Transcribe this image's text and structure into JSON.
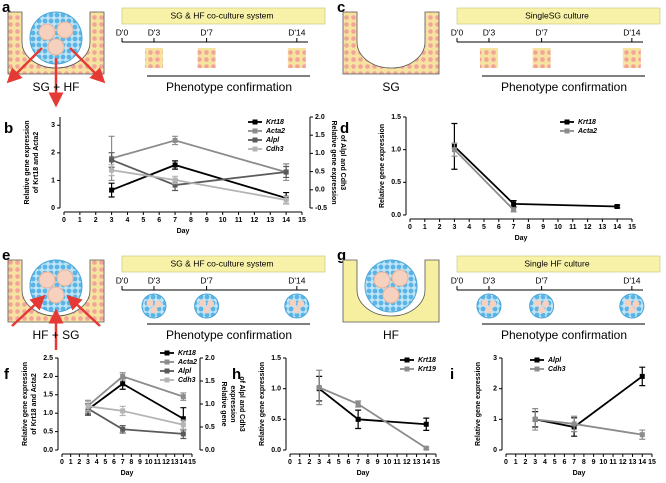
{
  "chart_data": [
    {
      "type": "line",
      "panel": "b",
      "xlabel": "Day",
      "ylabel": [
        "Relative gene expression",
        "of Krt18 and Acta2"
      ],
      "y2label": [
        "Relative gene expression",
        "of Alpl and Cdh3"
      ],
      "xlim": [
        0,
        15
      ],
      "xticks": [
        0,
        1,
        2,
        3,
        4,
        5,
        6,
        7,
        8,
        9,
        10,
        11,
        12,
        13,
        14,
        15
      ],
      "ylim": [
        0,
        3.3
      ],
      "yticks": [
        0,
        1,
        2,
        3
      ],
      "y2lim": [
        -0.5,
        2.0
      ],
      "y2ticks": [
        {
          "value": -0.5,
          "label": "-0.5"
        },
        {
          "value": 0,
          "label": "0.0"
        },
        {
          "value": 0.5,
          "label": "0.5"
        },
        {
          "value": 1,
          "label": "1.0"
        },
        {
          "value": 1.5,
          "label": "1.5"
        },
        {
          "value": 2,
          "label": "2.0"
        }
      ],
      "x": [
        3,
        7,
        14
      ],
      "series": [
        {
          "name": "Krt18",
          "color": "#000000",
          "values": [
            0.65,
            1.56,
            0.36
          ],
          "errors": [
            0.25,
            0.15,
            0.2
          ]
        },
        {
          "name": "Acta2",
          "color": "#8c8c8c",
          "values": [
            1.8,
            2.45,
            1.3
          ],
          "errors": [
            0.8,
            0.15,
            0.3
          ]
        },
        {
          "name": "Alpl",
          "color": "#5a5a5a",
          "axis": "y2",
          "values": [
            0.82,
            0.13,
            0.49
          ],
          "errors": [
            0.2,
            0.15,
            0.15
          ]
        },
        {
          "name": "Cdh3",
          "color": "#b4b4b4",
          "axis": "y2",
          "values": [
            0.54,
            0.27,
            -0.28
          ],
          "errors": [
            0.15,
            0.1,
            0.1
          ]
        }
      ]
    },
    {
      "type": "line",
      "panel": "d",
      "xlabel": "Day",
      "ylabel": [
        "Relative gene expression"
      ],
      "xlim": [
        0,
        15
      ],
      "xticks": [
        0,
        1,
        2,
        3,
        4,
        5,
        6,
        7,
        8,
        9,
        10,
        11,
        12,
        13,
        14,
        15
      ],
      "ylim": [
        0,
        1.5
      ],
      "yticks": [
        {
          "value": 0,
          "label": "0.0"
        },
        {
          "value": 0.5,
          "label": "0.5"
        },
        {
          "value": 1,
          "label": "1.0"
        },
        {
          "value": 1.5,
          "label": "1.5"
        }
      ],
      "x": [
        3,
        7,
        14
      ],
      "series": [
        {
          "name": "Krt18",
          "color": "#000000",
          "values": [
            1.05,
            0.17,
            0.13
          ],
          "errors": [
            0.35,
            0.05,
            0.02
          ]
        },
        {
          "name": "Acta2",
          "color": "#8c8c8c",
          "values": [
            1.0,
            0.08,
            null
          ],
          "errors": [
            0.1,
            0.03,
            null
          ]
        }
      ]
    },
    {
      "type": "line",
      "panel": "f",
      "xlabel": "Day",
      "ylabel": [
        "Relative gene expression",
        "of Krt18 and Acta2"
      ],
      "y2label": [
        "Relative gene",
        "expression",
        "of Alpl and Cdh3"
      ],
      "xlim": [
        0,
        15
      ],
      "xticks": [
        0,
        1,
        2,
        3,
        4,
        5,
        6,
        7,
        8,
        9,
        10,
        11,
        12,
        13,
        14,
        15
      ],
      "ylim": [
        0,
        2.5
      ],
      "yticks": [
        {
          "value": 0,
          "label": "0.0"
        },
        {
          "value": 0.5,
          "label": "0.5"
        },
        {
          "value": 1,
          "label": "1.0"
        },
        {
          "value": 1.5,
          "label": "1.5"
        },
        {
          "value": 2,
          "label": "2.0"
        },
        {
          "value": 2.5,
          "label": "2.5"
        }
      ],
      "y2lim": [
        0,
        2.0
      ],
      "y2ticks": [
        {
          "value": 0,
          "label": "0.0"
        },
        {
          "value": 0.5,
          "label": "0.5"
        },
        {
          "value": 1,
          "label": "1.0"
        },
        {
          "value": 1.5,
          "label": "1.5"
        },
        {
          "value": 2,
          "label": "2.0"
        }
      ],
      "x": [
        3,
        7,
        14
      ],
      "series": [
        {
          "name": "Krt18",
          "color": "#000000",
          "values": [
            1.1,
            1.8,
            0.85
          ],
          "errors": [
            0.15,
            0.15,
            0.3
          ]
        },
        {
          "name": "Acta2",
          "color": "#8c8c8c",
          "values": [
            1.2,
            2.0,
            1.45
          ],
          "errors": [
            0.15,
            0.1,
            0.1
          ]
        },
        {
          "name": "Alpl",
          "color": "#5a5a5a",
          "axis": "y2",
          "values": [
            0.9,
            0.45,
            0.35
          ],
          "errors": [
            0.1,
            0.08,
            0.1
          ]
        },
        {
          "name": "Cdh3",
          "color": "#b4b4b4",
          "axis": "y2",
          "values": [
            0.95,
            0.85,
            0.55
          ],
          "errors": [
            0.1,
            0.1,
            0.1
          ]
        }
      ]
    },
    {
      "type": "line",
      "panel": "h",
      "xlabel": "Day",
      "ylabel": [
        "Relative gene expression"
      ],
      "xlim": [
        0,
        15
      ],
      "xticks": [
        0,
        1,
        2,
        3,
        4,
        5,
        6,
        7,
        8,
        9,
        10,
        11,
        12,
        13,
        14,
        15
      ],
      "ylim": [
        0,
        1.5
      ],
      "yticks": [
        {
          "value": 0,
          "label": "0.0"
        },
        {
          "value": 0.5,
          "label": "0.5"
        },
        {
          "value": 1,
          "label": "1.0"
        },
        {
          "value": 1.5,
          "label": "1.5"
        }
      ],
      "x": [
        3,
        7,
        14
      ],
      "series": [
        {
          "name": "Krt18",
          "color": "#000000",
          "values": [
            1.0,
            0.5,
            0.42
          ],
          "errors": [
            0.2,
            0.15,
            0.1
          ]
        },
        {
          "name": "Krt19",
          "color": "#8c8c8c",
          "values": [
            1.02,
            0.75,
            0.03
          ],
          "errors": [
            0.28,
            0.05,
            0.02
          ]
        }
      ]
    },
    {
      "type": "line",
      "panel": "i",
      "xlabel": "Day",
      "ylabel": [
        "Relative gene expression"
      ],
      "xlim": [
        0,
        15
      ],
      "xticks": [
        0,
        1,
        2,
        3,
        4,
        5,
        6,
        7,
        8,
        9,
        10,
        11,
        12,
        13,
        14,
        15
      ],
      "ylim": [
        0,
        3
      ],
      "yticks": [
        0,
        1,
        2,
        3
      ],
      "x": [
        3,
        7,
        14
      ],
      "series": [
        {
          "name": "Alpl",
          "color": "#000000",
          "values": [
            1.0,
            0.75,
            2.4
          ],
          "errors": [
            0.25,
            0.3,
            0.3
          ]
        },
        {
          "name": "Cdh3",
          "color": "#8c8c8c",
          "values": [
            1.0,
            0.85,
            0.5
          ],
          "errors": [
            0.35,
            0.25,
            0.15
          ]
        }
      ]
    }
  ],
  "diagrams": [
    {
      "panel": "a",
      "label": "SG + HF",
      "system": "SG & HF co-culture system",
      "days": [
        "D'0",
        "D'3",
        "D'7",
        "D'14"
      ],
      "caption": "Phenotype confirmation"
    },
    {
      "panel": "c",
      "label": "SG",
      "system": "SingleSG culture",
      "days": [
        "D'0",
        "D'3",
        "D'7",
        "D'14"
      ],
      "caption": "Phenotype confirmation"
    },
    {
      "panel": "e",
      "label": "HF + SG",
      "system": "SG & HF co-culture system",
      "days": [
        "D'0",
        "D'3",
        "D'7",
        "D'14"
      ],
      "caption": "Phenotype confirmation"
    },
    {
      "panel": "g",
      "label": "HF",
      "system": "Single HF culture",
      "days": [
        "D'0",
        "D'3",
        "D'7",
        "D'14"
      ],
      "caption": "Phenotype confirmation"
    }
  ]
}
